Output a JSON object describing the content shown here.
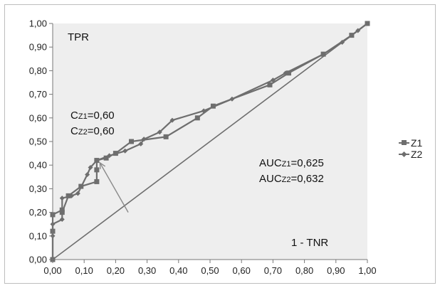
{
  "chart_data": {
    "type": "line",
    "x_tick_labels": [
      "0,00",
      "0,10",
      "0,20",
      "0,30",
      "0,40",
      "0,50",
      "0,60",
      "0,70",
      "0,80",
      "0,90",
      "1,00"
    ],
    "y_tick_labels": [
      "0,00",
      "0,10",
      "0,20",
      "0,30",
      "0,40",
      "0,50",
      "0,60",
      "0,70",
      "0,80",
      "0,90",
      "1,00"
    ],
    "xlim": [
      0,
      1
    ],
    "ylim": [
      0,
      1
    ],
    "grid": false,
    "legend_position": "right",
    "y_axis_title": "TPR",
    "x_axis_title": "1 - TNR",
    "series": [
      {
        "name": "Z1",
        "marker": "square",
        "color": "#6e6e6e",
        "x": [
          0.0,
          0.0,
          0.0,
          0.03,
          0.03,
          0.05,
          0.09,
          0.14,
          0.14,
          0.14,
          0.17,
          0.2,
          0.25,
          0.36,
          0.46,
          0.51,
          0.69,
          0.75,
          0.86,
          0.95,
          1.0
        ],
        "y": [
          0.0,
          0.12,
          0.19,
          0.21,
          0.2,
          0.27,
          0.31,
          0.33,
          0.38,
          0.42,
          0.43,
          0.45,
          0.5,
          0.52,
          0.6,
          0.65,
          0.74,
          0.79,
          0.87,
          0.95,
          1.0
        ]
      },
      {
        "name": "Z2",
        "marker": "diamond",
        "color": "#6e6e6e",
        "x": [
          0.0,
          0.0,
          0.0,
          0.03,
          0.03,
          0.06,
          0.08,
          0.11,
          0.12,
          0.14,
          0.18,
          0.23,
          0.28,
          0.29,
          0.34,
          0.38,
          0.48,
          0.57,
          0.7,
          0.74,
          0.86,
          0.92,
          0.97,
          1.0
        ],
        "y": [
          0.0,
          0.1,
          0.15,
          0.17,
          0.26,
          0.27,
          0.28,
          0.36,
          0.39,
          0.42,
          0.44,
          0.46,
          0.49,
          0.51,
          0.54,
          0.59,
          0.63,
          0.68,
          0.76,
          0.79,
          0.87,
          0.92,
          0.97,
          1.0
        ]
      }
    ],
    "reference_line": {
      "x": [
        0,
        1
      ],
      "y": [
        0,
        1
      ]
    },
    "arrow": {
      "from": [
        0.24,
        0.2
      ],
      "to": [
        0.15,
        0.41
      ]
    },
    "annotations": {
      "cut": [
        {
          "main": "C",
          "sub": "Z1",
          "value": "=0,60"
        },
        {
          "main": "C",
          "sub": "Z2",
          "value": "=0,60"
        }
      ],
      "auc": [
        {
          "main": "AUC",
          "sub": "Z1",
          "value": "=0,625"
        },
        {
          "main": "AUC",
          "sub": "Z2",
          "value": "=0,632"
        }
      ]
    }
  }
}
